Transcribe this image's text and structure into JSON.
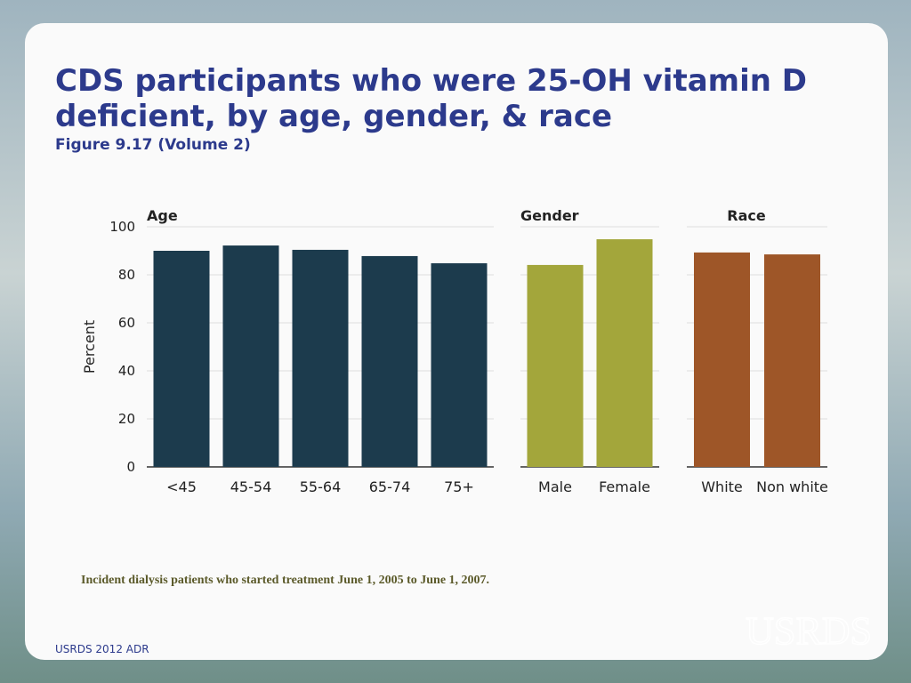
{
  "slide": {
    "title_lines": [
      "CDS participants who were 25-OH vitamin D",
      "deficient, by age, gender, & race"
    ],
    "subtitle": "Figure 9.17 (Volume 2)",
    "note": "Incident dialysis patients who started treatment June 1, 2005 to June 1, 2007.",
    "footer": "USRDS 2012 ADR",
    "logo": "USRDS"
  },
  "chart_data": [
    {
      "type": "bar",
      "title": "Age",
      "ylabel": "Percent",
      "categories": [
        "<45",
        "45-54",
        "55-64",
        "65-74",
        "75+"
      ],
      "values": [
        90,
        92.2,
        90.4,
        87.8,
        84.8
      ],
      "color": "#1c3b4d",
      "ylim": [
        0,
        100
      ],
      "yticks": [
        0,
        20,
        40,
        60,
        80,
        100
      ],
      "grid": true
    },
    {
      "type": "bar",
      "title": "Gender",
      "categories": [
        "Male",
        "Female"
      ],
      "values": [
        84.1,
        94.8
      ],
      "color": "#a3a63b",
      "ylim": [
        0,
        100
      ],
      "yticks": [
        0,
        20,
        40,
        60,
        80,
        100
      ],
      "grid": true
    },
    {
      "type": "bar",
      "title": "Race",
      "categories": [
        "White",
        "Non white"
      ],
      "values": [
        89.3,
        88.5
      ],
      "color": "#9e5628",
      "ylim": [
        0,
        100
      ],
      "yticks": [
        0,
        20,
        40,
        60,
        80,
        100
      ],
      "grid": true
    }
  ]
}
